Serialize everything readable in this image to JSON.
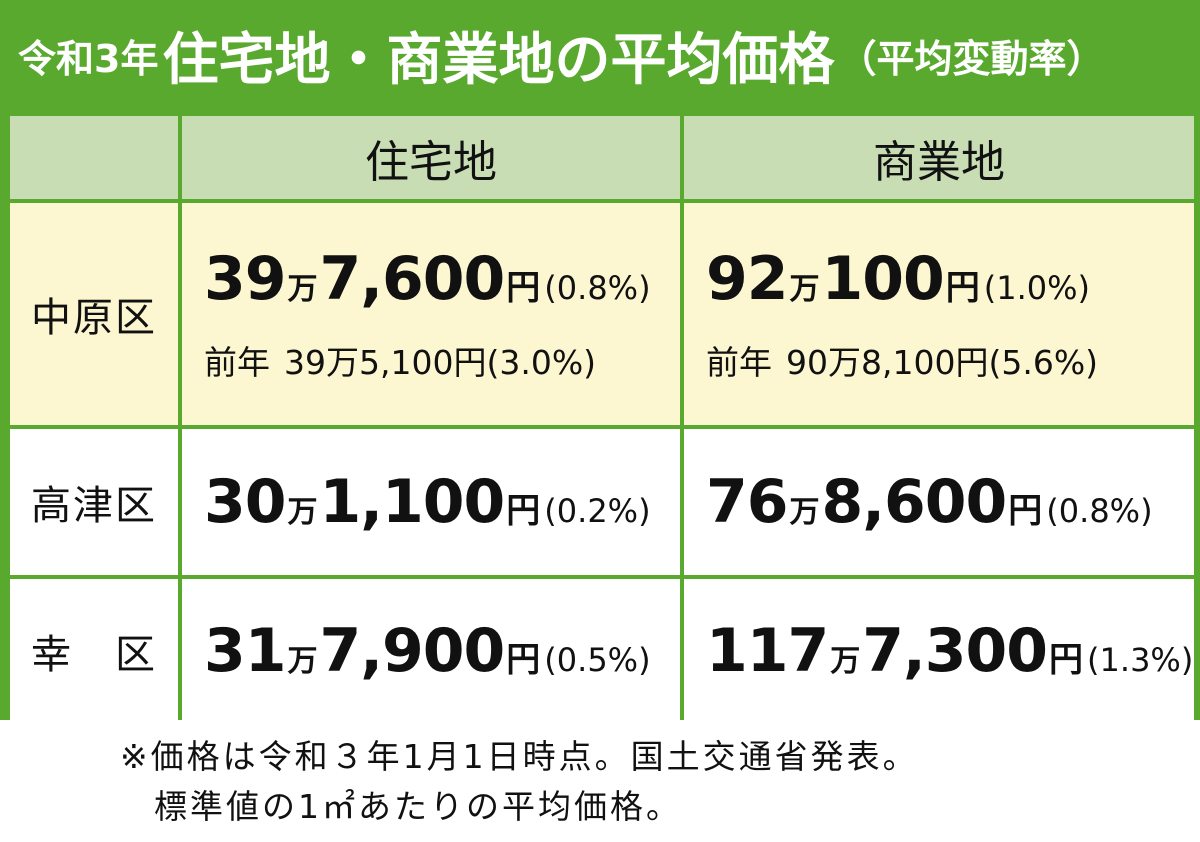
{
  "header": {
    "era": "令和3年",
    "title": "住宅地・商業地の平均価格",
    "subtitle": "（平均変動率）"
  },
  "table": {
    "columns": [
      "住宅地",
      "商業地"
    ],
    "rows": [
      {
        "district": "中原区",
        "residential": {
          "man": "39",
          "unit": "万",
          "rest": "7,600",
          "yen": "円",
          "pct": "(0.8%)"
        },
        "commercial": {
          "man": "92",
          "unit": "万",
          "rest": "100",
          "yen": "円",
          "pct": "(1.0%)"
        },
        "residential_prev": {
          "label": "前年",
          "value": "39万5,100円(3.0%)"
        },
        "commercial_prev": {
          "label": "前年",
          "value": "90万8,100円(5.6%)"
        }
      },
      {
        "district": "高津区",
        "residential": {
          "man": "30",
          "unit": "万",
          "rest": "1,100",
          "yen": "円",
          "pct": "(0.2%)"
        },
        "commercial": {
          "man": "76",
          "unit": "万",
          "rest": "8,600",
          "yen": "円",
          "pct": "(0.8%)"
        }
      },
      {
        "district": "幸　区",
        "residential": {
          "man": "31",
          "unit": "万",
          "rest": "7,900",
          "yen": "円",
          "pct": "(0.5%)"
        },
        "commercial": {
          "man": "117",
          "unit": "万",
          "rest": "7,300",
          "yen": "円",
          "pct": "(1.3%)"
        }
      }
    ]
  },
  "note": {
    "line1": "※価格は令和３年1月1日時点。国土交通省発表。",
    "line2": "標準値の1㎡あたりの平均価格。"
  },
  "colors": {
    "green": "#5aa92f",
    "header_cell": "#c8ddb3",
    "highlight_row": "#fdf7d1"
  }
}
